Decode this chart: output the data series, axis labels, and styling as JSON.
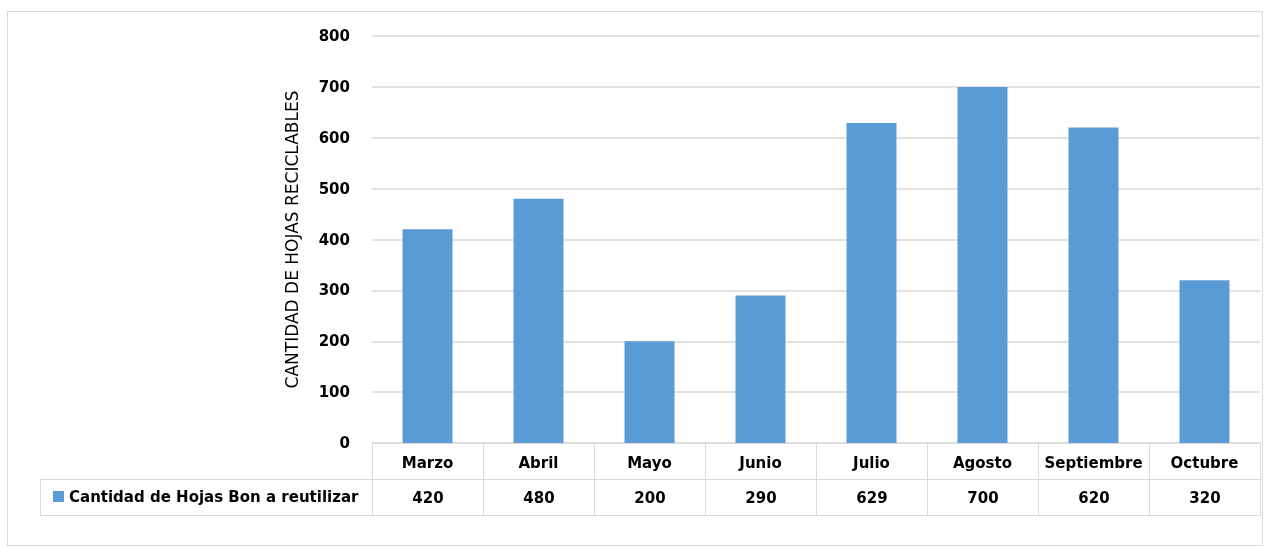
{
  "chart_data": {
    "type": "bar",
    "ylabel": "CANTIDAD DE HOJAS RECICLABLES",
    "categories": [
      "Marzo",
      "Abril",
      "Mayo",
      "Junio",
      "Julio",
      "Agosto",
      "Septiembre",
      "Octubre"
    ],
    "series": [
      {
        "name": "Cantidad de Hojas Bon a reutilizar",
        "color": "#5b9bd5",
        "values": [
          420,
          480,
          200,
          290,
          629,
          700,
          620,
          320
        ]
      }
    ],
    "ylim": [
      0,
      800
    ],
    "yticks": [
      0,
      100,
      200,
      300,
      400,
      500,
      600,
      700,
      800
    ],
    "grid": "y",
    "legend": "bottom",
    "data_labels": true
  }
}
